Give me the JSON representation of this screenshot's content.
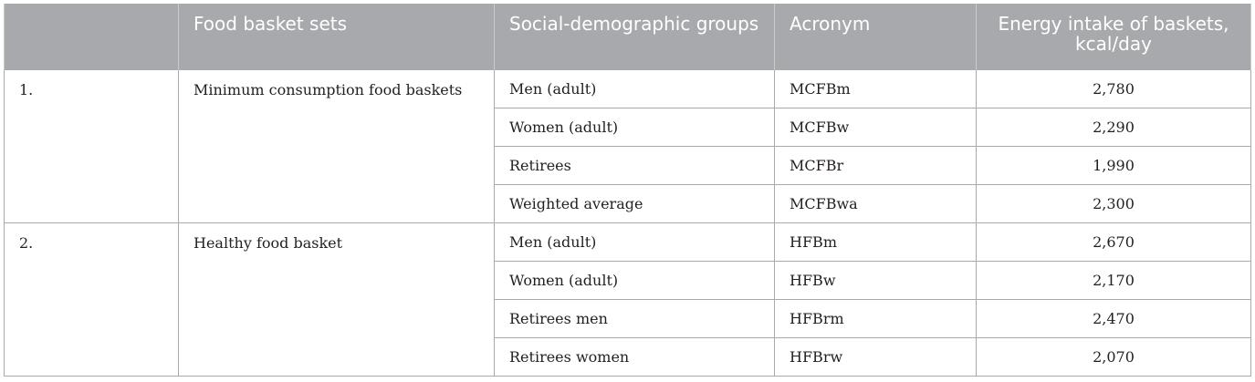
{
  "headers": [
    "",
    "Food basket sets",
    "Social-demographic groups",
    "Acronym",
    "Energy intake of baskets, kcal/day"
  ],
  "groups": [
    {
      "number": "1.",
      "set": "Minimum consumption food baskets",
      "rows": [
        {
          "group": "Men (adult)",
          "acronym": "MCFBm",
          "energy": "2,780"
        },
        {
          "group": "Women (adult)",
          "acronym": "MCFBw",
          "energy": "2,290"
        },
        {
          "group": "Retirees",
          "acronym": "MCFBr",
          "energy": "1,990"
        },
        {
          "group": "Weighted average",
          "acronym": "MCFBwa",
          "energy": "2,300"
        }
      ]
    },
    {
      "number": "2.",
      "set": "Healthy food basket",
      "rows": [
        {
          "group": "Men (adult)",
          "acronym": "HFBm",
          "energy": "2,670"
        },
        {
          "group": "Women (adult)",
          "acronym": "HFBw",
          "energy": "2,170"
        },
        {
          "group": "Retirees men",
          "acronym": "HFBrm",
          "energy": "2,470"
        },
        {
          "group": "Retirees women",
          "acronym": "HFBrw",
          "energy": "2,070"
        }
      ]
    }
  ]
}
